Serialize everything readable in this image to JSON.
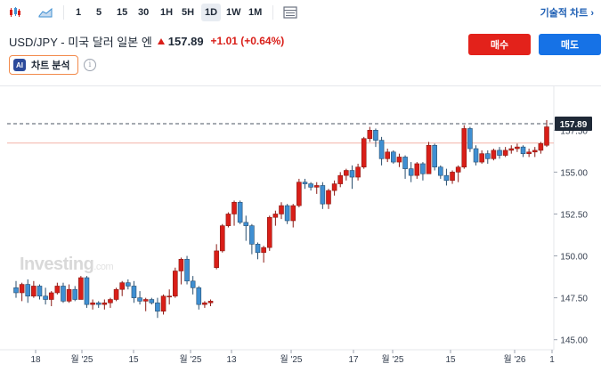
{
  "toolbar": {
    "timeframes": [
      "1",
      "5",
      "15",
      "30",
      "1H",
      "5H",
      "1D",
      "1W",
      "1M"
    ],
    "active_timeframe": "1D",
    "technical_chart_label": "기술적 차트 ›"
  },
  "header": {
    "symbol_name": "USD/JPY - 미국 달러 일본 엔",
    "last_price": "157.89",
    "change": "+1.01 (+0.64%)",
    "buy_label": "매수",
    "sell_label": "매도",
    "analysis_badge": "AI",
    "analysis_label": "차트 분석",
    "info_glyph": "i"
  },
  "watermark": {
    "text": "Investing",
    "suffix": ".com"
  },
  "colors": {
    "up": "#d91e18",
    "down": "#3f8fd2",
    "buy": "#e3221b",
    "sell": "#1672e6",
    "line": "#f3b3a7"
  },
  "chart_data": {
    "type": "candlestick",
    "ylim": [
      144.4,
      159.8
    ],
    "y_ticks": [
      "145.00",
      "147.50",
      "150.00",
      "152.50",
      "155.00",
      "157.50"
    ],
    "x_tick_labels": [
      "18",
      "월 '25",
      "15",
      "월 '25",
      "13",
      "월 '25",
      "17",
      "월 '25",
      "15",
      "월 '26",
      "1"
    ],
    "current_price_label": "157.89",
    "current_price": 157.89,
    "reference_line": 156.73,
    "grid": false,
    "candles": [
      [
        148.1,
        148.5,
        147.5,
        147.8
      ],
      [
        147.8,
        148.4,
        147.3,
        148.3
      ],
      [
        148.3,
        148.6,
        147.2,
        147.6
      ],
      [
        147.6,
        148.5,
        147.5,
        148.2
      ],
      [
        148.2,
        148.3,
        147.4,
        147.6
      ],
      [
        147.6,
        148.1,
        147.1,
        147.4
      ],
      [
        147.4,
        147.9,
        147.0,
        147.8
      ],
      [
        147.8,
        148.4,
        147.7,
        148.2
      ],
      [
        148.2,
        148.4,
        147.2,
        147.3
      ],
      [
        147.3,
        148.3,
        147.2,
        148.0
      ],
      [
        148.0,
        148.2,
        147.3,
        147.4
      ],
      [
        147.4,
        148.8,
        147.4,
        148.7
      ],
      [
        148.7,
        148.8,
        146.9,
        147.1
      ],
      [
        147.1,
        147.4,
        146.8,
        147.2
      ],
      [
        147.2,
        147.3,
        146.9,
        147.1
      ],
      [
        147.1,
        147.4,
        146.8,
        147.2
      ],
      [
        147.2,
        147.5,
        146.9,
        147.4
      ],
      [
        147.4,
        148.1,
        147.3,
        148.0
      ],
      [
        148.0,
        148.5,
        147.6,
        148.4
      ],
      [
        148.4,
        148.6,
        148.0,
        148.2
      ],
      [
        148.2,
        148.5,
        147.2,
        147.5
      ],
      [
        147.5,
        147.9,
        147.1,
        147.3
      ],
      [
        147.3,
        147.5,
        146.7,
        147.4
      ],
      [
        147.4,
        147.5,
        147.1,
        147.2
      ],
      [
        147.2,
        147.5,
        146.3,
        146.7
      ],
      [
        146.7,
        147.7,
        146.5,
        147.6
      ],
      [
        147.6,
        148.0,
        147.1,
        147.6
      ],
      [
        147.6,
        149.3,
        147.5,
        149.1
      ],
      [
        149.1,
        149.9,
        148.3,
        149.8
      ],
      [
        149.8,
        150.0,
        148.3,
        148.5
      ],
      [
        148.5,
        148.8,
        147.7,
        148.1
      ],
      [
        148.1,
        148.2,
        146.8,
        147.1
      ],
      [
        147.1,
        147.3,
        146.9,
        147.2
      ],
      [
        147.2,
        147.4,
        147.0,
        147.3
      ],
      [
        149.3,
        150.7,
        149.2,
        150.3
      ],
      [
        150.3,
        151.9,
        150.2,
        151.8
      ],
      [
        151.8,
        152.6,
        151.7,
        152.5
      ],
      [
        152.5,
        153.3,
        151.8,
        153.2
      ],
      [
        153.2,
        153.3,
        151.9,
        152.0
      ],
      [
        152.0,
        152.4,
        150.9,
        151.8
      ],
      [
        151.8,
        151.9,
        150.1,
        150.7
      ],
      [
        150.7,
        150.8,
        149.8,
        150.2
      ],
      [
        150.2,
        150.6,
        149.6,
        150.5
      ],
      [
        150.5,
        152.4,
        150.3,
        152.3
      ],
      [
        152.3,
        152.7,
        151.8,
        152.5
      ],
      [
        152.5,
        153.2,
        152.2,
        153.0
      ],
      [
        153.0,
        153.1,
        151.9,
        152.1
      ],
      [
        152.1,
        153.1,
        151.7,
        153.0
      ],
      [
        153.0,
        154.6,
        152.9,
        154.4
      ],
      [
        154.4,
        154.6,
        154.0,
        154.3
      ],
      [
        154.3,
        154.4,
        153.9,
        154.1
      ],
      [
        154.1,
        154.4,
        153.7,
        154.2
      ],
      [
        154.2,
        154.4,
        152.8,
        153.1
      ],
      [
        153.1,
        154.0,
        152.8,
        153.9
      ],
      [
        153.9,
        154.5,
        153.6,
        154.3
      ],
      [
        154.3,
        155.0,
        154.1,
        154.8
      ],
      [
        154.8,
        155.2,
        154.5,
        155.1
      ],
      [
        155.1,
        155.4,
        154.0,
        154.7
      ],
      [
        154.7,
        155.5,
        154.5,
        155.3
      ],
      [
        155.3,
        157.1,
        155.2,
        157.0
      ],
      [
        157.0,
        157.7,
        156.8,
        157.5
      ],
      [
        157.5,
        157.6,
        156.5,
        156.9
      ],
      [
        156.9,
        157.1,
        155.4,
        155.8
      ],
      [
        155.8,
        156.4,
        155.6,
        156.2
      ],
      [
        156.2,
        156.3,
        155.5,
        155.6
      ],
      [
        155.6,
        156.1,
        155.3,
        155.9
      ],
      [
        155.9,
        156.0,
        154.6,
        155.2
      ],
      [
        155.2,
        155.6,
        154.4,
        154.8
      ],
      [
        154.8,
        155.6,
        154.6,
        155.5
      ],
      [
        155.5,
        155.6,
        154.5,
        154.9
      ],
      [
        154.9,
        156.8,
        154.9,
        156.6
      ],
      [
        156.6,
        156.7,
        155.1,
        155.3
      ],
      [
        155.3,
        155.4,
        154.6,
        154.8
      ],
      [
        154.8,
        155.2,
        154.2,
        154.5
      ],
      [
        154.5,
        155.1,
        154.3,
        155.0
      ],
      [
        155.0,
        155.4,
        154.4,
        155.3
      ],
      [
        155.3,
        157.8,
        155.2,
        157.6
      ],
      [
        157.6,
        157.7,
        156.2,
        156.4
      ],
      [
        156.4,
        156.6,
        155.4,
        155.6
      ],
      [
        155.6,
        156.3,
        155.5,
        156.1
      ],
      [
        156.1,
        156.3,
        155.5,
        155.8
      ],
      [
        155.8,
        156.4,
        155.7,
        156.3
      ],
      [
        156.3,
        156.5,
        155.8,
        156.0
      ],
      [
        156.0,
        156.5,
        155.9,
        156.3
      ],
      [
        156.3,
        156.6,
        156.1,
        156.4
      ],
      [
        156.4,
        156.7,
        156.2,
        156.5
      ],
      [
        156.5,
        156.6,
        155.9,
        156.1
      ],
      [
        156.1,
        156.4,
        155.9,
        156.2
      ],
      [
        156.2,
        156.5,
        155.9,
        156.3
      ],
      [
        156.3,
        156.8,
        156.1,
        156.7
      ],
      [
        156.6,
        158.1,
        156.5,
        157.7
      ]
    ]
  }
}
